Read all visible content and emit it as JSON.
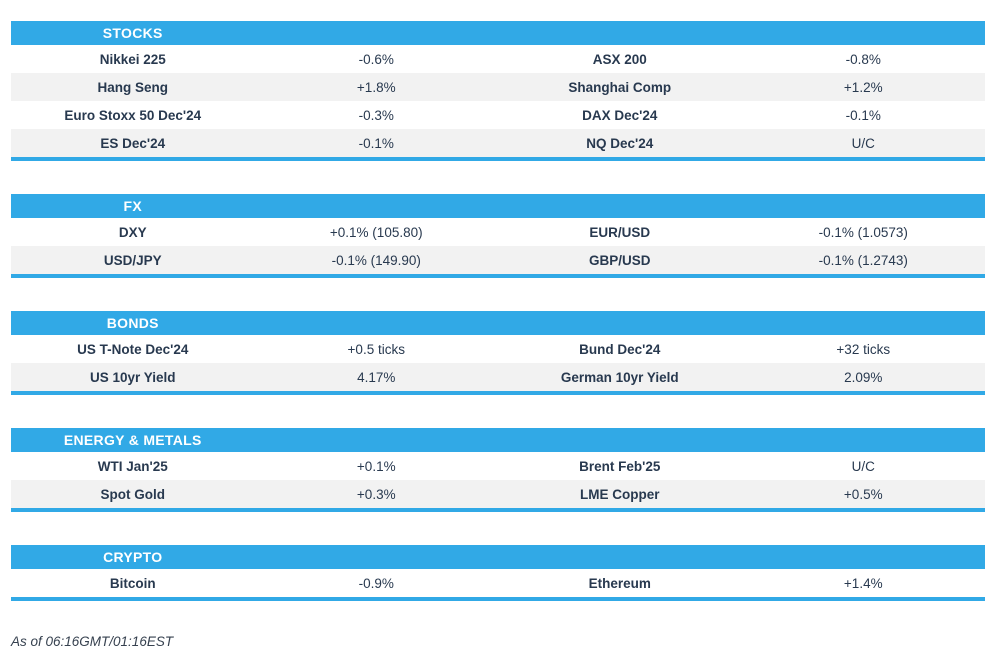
{
  "colors": {
    "accent": "#31a9e6",
    "stripe": "#f2f2f2",
    "ink": "#28394f"
  },
  "sections": [
    {
      "label": "STOCKS",
      "rows": [
        [
          "Nikkei 225",
          "-0.6%",
          "ASX 200",
          "-0.8%"
        ],
        [
          "Hang Seng",
          "+1.8%",
          "Shanghai Comp",
          "+1.2%"
        ],
        [
          "Euro Stoxx 50 Dec'24",
          "-0.3%",
          "DAX Dec'24",
          "-0.1%"
        ],
        [
          "ES Dec'24",
          "-0.1%",
          "NQ Dec'24",
          "U/C"
        ]
      ]
    },
    {
      "label": "FX",
      "rows": [
        [
          "DXY",
          "+0.1% (105.80)",
          "EUR/USD",
          "-0.1% (1.0573)"
        ],
        [
          "USD/JPY",
          "-0.1% (149.90)",
          "GBP/USD",
          "-0.1% (1.2743)"
        ]
      ]
    },
    {
      "label": "BONDS",
      "rows": [
        [
          "US T-Note Dec'24",
          "+0.5 ticks",
          "Bund Dec'24",
          "+32 ticks"
        ],
        [
          "US 10yr Yield",
          "4.17%",
          "German 10yr Yield",
          "2.09%"
        ]
      ]
    },
    {
      "label": "ENERGY & METALS",
      "rows": [
        [
          "WTI Jan'25",
          "+0.1%",
          "Brent Feb'25",
          "U/C"
        ],
        [
          "Spot Gold",
          "+0.3%",
          "LME Copper",
          "+0.5%"
        ]
      ]
    },
    {
      "label": "CRYPTO",
      "rows": [
        [
          "Bitcoin",
          "-0.9%",
          "Ethereum",
          "+1.4%"
        ]
      ]
    }
  ],
  "footer": {
    "as_of": "As of 06:16GMT/01:16EST"
  }
}
